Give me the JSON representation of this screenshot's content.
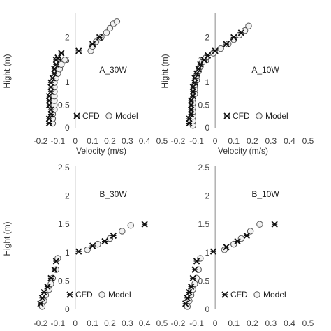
{
  "chart_data": [
    {
      "type": "scatter",
      "panel": "A_30W",
      "x_ticks": [
        "-0.2",
        "-0.1",
        "0",
        "0.1",
        "0.2",
        "0.3",
        "0.4",
        "0.5"
      ],
      "y_ticks": [
        "0",
        "0.5",
        "1",
        "1.5",
        "2"
      ],
      "xlabel": "Velocity (m/s)",
      "ylabel": "Hight (m)",
      "xlim": [
        -0.2,
        0.5
      ],
      "ylim": [
        0,
        2.5
      ],
      "legend": [
        "CFD",
        "Model"
      ],
      "series": [
        {
          "name": "CFD",
          "marker": "x-star",
          "x": [
            -0.15,
            -0.15,
            -0.14,
            -0.14,
            -0.15,
            -0.15,
            -0.15,
            -0.14,
            -0.14,
            -0.14,
            -0.13,
            -0.12,
            -0.12,
            -0.11,
            -0.11,
            -0.1,
            -0.08,
            0.02,
            0.1,
            0.14
          ],
          "y": [
            0.1,
            0.2,
            0.3,
            0.4,
            0.5,
            0.6,
            0.7,
            0.8,
            0.9,
            1.0,
            1.1,
            1.2,
            1.3,
            1.4,
            1.5,
            1.55,
            1.65,
            1.7,
            1.85,
            2.0
          ]
        },
        {
          "name": "Model",
          "marker": "circle",
          "x": [
            -0.13,
            -0.13,
            -0.13,
            -0.12,
            -0.12,
            -0.12,
            -0.12,
            -0.12,
            -0.12,
            -0.12,
            -0.11,
            -0.1,
            -0.09,
            -0.08,
            -0.06,
            0.09,
            0.1,
            0.12,
            0.15,
            0.18,
            0.2,
            0.22,
            0.24
          ],
          "y": [
            0.1,
            0.2,
            0.3,
            0.4,
            0.5,
            0.6,
            0.7,
            0.8,
            0.9,
            1.0,
            1.1,
            1.2,
            1.3,
            1.4,
            1.5,
            1.7,
            1.8,
            1.9,
            2.0,
            2.1,
            2.2,
            2.3,
            2.35
          ]
        }
      ]
    },
    {
      "type": "scatter",
      "panel": "A_10W",
      "x_ticks": [
        "-0.2",
        "-0.1",
        "0",
        "0.1",
        "0.2",
        "0.3",
        "0.4",
        "0.5"
      ],
      "y_ticks": [
        "0",
        "0.5",
        "1",
        "1.5",
        "2"
      ],
      "xlabel": "Velocity (m/s)",
      "ylabel": "Hight (m)",
      "xlim": [
        -0.2,
        0.5
      ],
      "ylim": [
        0,
        2.5
      ],
      "legend": [
        "CFD",
        "Model"
      ],
      "series": [
        {
          "name": "CFD",
          "marker": "x-star",
          "x": [
            -0.14,
            -0.14,
            -0.13,
            -0.13,
            -0.13,
            -0.13,
            -0.12,
            -0.12,
            -0.12,
            -0.11,
            -0.11,
            -0.1,
            -0.09,
            -0.08,
            -0.06,
            -0.04,
            0.0,
            0.06,
            0.1,
            0.14
          ],
          "y": [
            0.1,
            0.2,
            0.3,
            0.4,
            0.5,
            0.6,
            0.7,
            0.8,
            0.9,
            1.0,
            1.1,
            1.2,
            1.3,
            1.4,
            1.5,
            1.6,
            1.7,
            1.85,
            2.0,
            2.1
          ]
        },
        {
          "name": "Model",
          "marker": "circle",
          "x": [
            -0.12,
            -0.12,
            -0.12,
            -0.12,
            -0.12,
            -0.12,
            -0.12,
            -0.11,
            -0.11,
            -0.11,
            -0.1,
            -0.1,
            -0.09,
            -0.08,
            -0.07,
            -0.05,
            -0.01,
            0.03,
            0.07,
            0.1,
            0.13,
            0.16,
            0.18
          ],
          "y": [
            0.05,
            0.15,
            0.25,
            0.35,
            0.45,
            0.55,
            0.65,
            0.75,
            0.85,
            0.95,
            1.05,
            1.15,
            1.25,
            1.35,
            1.45,
            1.55,
            1.65,
            1.75,
            1.85,
            1.95,
            2.05,
            2.15,
            2.25
          ]
        }
      ]
    },
    {
      "type": "scatter",
      "panel": "B_30W",
      "x_ticks": [
        "-0.2",
        "-0.1",
        "0",
        "0.1",
        "0.2",
        "0.3",
        "0.4",
        "0.5"
      ],
      "y_ticks": [
        "0",
        "0.5",
        "1",
        "1.5",
        "2",
        "2.5"
      ],
      "xlabel": "",
      "ylabel": "Hight (m)",
      "xlim": [
        -0.2,
        0.5
      ],
      "ylim": [
        0,
        2.5
      ],
      "legend": [
        "CFD",
        "Model"
      ],
      "series": [
        {
          "name": "CFD",
          "marker": "x-star",
          "x": [
            -0.2,
            -0.19,
            -0.18,
            -0.16,
            -0.14,
            -0.12,
            -0.11,
            0.02,
            0.1,
            0.17,
            0.22,
            0.4
          ],
          "y": [
            0.1,
            0.2,
            0.3,
            0.4,
            0.55,
            0.7,
            0.85,
            1.02,
            1.12,
            1.2,
            1.3,
            1.5
          ]
        },
        {
          "name": "Model",
          "marker": "circle",
          "x": [
            -0.19,
            -0.18,
            -0.17,
            -0.15,
            -0.14,
            -0.13,
            -0.11,
            -0.1,
            0.07,
            0.13,
            0.2,
            0.27,
            0.32
          ],
          "y": [
            0.05,
            0.15,
            0.25,
            0.35,
            0.45,
            0.55,
            0.7,
            0.9,
            1.05,
            1.15,
            1.25,
            1.38,
            1.48
          ]
        }
      ]
    },
    {
      "type": "scatter",
      "panel": "B_10W",
      "x_ticks": [
        "-0.2",
        "-0.1",
        "0",
        "0.1",
        "0.2",
        "0.3",
        "0.4",
        "0.5"
      ],
      "y_ticks": [
        "0",
        "0.5",
        "1",
        "1.5",
        "2",
        "2.5"
      ],
      "xlabel": "",
      "ylabel": "",
      "xlim": [
        -0.2,
        0.5
      ],
      "ylim": [
        0,
        2.5
      ],
      "legend": [
        "CFD",
        "Model"
      ],
      "series": [
        {
          "name": "CFD",
          "marker": "x-star",
          "x": [
            -0.16,
            -0.15,
            -0.14,
            -0.13,
            -0.12,
            -0.11,
            -0.1,
            -0.01,
            0.06,
            0.12,
            0.17,
            0.32
          ],
          "y": [
            0.1,
            0.2,
            0.3,
            0.4,
            0.55,
            0.7,
            0.85,
            1.02,
            1.1,
            1.2,
            1.3,
            1.5
          ]
        },
        {
          "name": "Model",
          "marker": "circle",
          "x": [
            -0.15,
            -0.14,
            -0.13,
            -0.12,
            -0.11,
            -0.1,
            -0.09,
            -0.08,
            0.05,
            0.1,
            0.14,
            0.19,
            0.24
          ],
          "y": [
            0.05,
            0.15,
            0.25,
            0.35,
            0.45,
            0.55,
            0.7,
            0.9,
            1.05,
            1.15,
            1.25,
            1.38,
            1.5
          ]
        }
      ]
    }
  ]
}
